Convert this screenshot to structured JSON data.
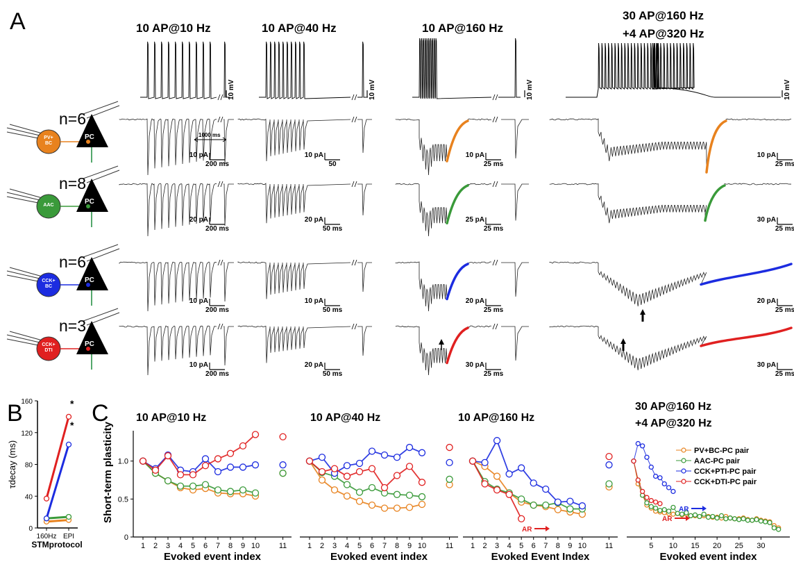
{
  "panel_labels": {
    "a": "A",
    "b": "B",
    "c": "C"
  },
  "columns": [
    {
      "title": "10 AP@10 Hz"
    },
    {
      "title": "10 AP@40 Hz"
    },
    {
      "title": "10 AP@160 Hz"
    },
    {
      "title_line1": "30 AP@160 Hz",
      "title_line2": "+4 AP@320 Hz"
    }
  ],
  "voltage_scale": "10 mV",
  "interval_label": "1000 ms",
  "rows": [
    {
      "n": "n=6",
      "cell": "PV+\nBC",
      "pc": "PC",
      "color": "#e8821e",
      "scales": [
        [
          "10 pA",
          "200 ms"
        ],
        [
          "10 pA",
          "50"
        ],
        [
          "10 pA",
          "25 ms"
        ],
        [
          "10 pA",
          "25 ms"
        ]
      ]
    },
    {
      "n": "n=8",
      "cell": "AAC",
      "pc": "PC",
      "color": "#3a9a3a",
      "scales": [
        [
          "20 pA",
          "200 ms"
        ],
        [
          "20 pA",
          "50 ms"
        ],
        [
          "25 pA",
          "25 ms"
        ],
        [
          "30 pA",
          "25 ms"
        ]
      ]
    },
    {
      "n": "n=6",
      "cell": "CCK+\nBC",
      "pc": "PC",
      "color": "#1c2ce0",
      "scales": [
        [
          "10 pA",
          "200 ms"
        ],
        [
          "10 pA",
          "50 ms"
        ],
        [
          "20 pA",
          "25 ms"
        ],
        [
          "20 pA",
          "25 ms"
        ]
      ]
    },
    {
      "n": "n=3",
      "cell": "CCK+\nDTI",
      "pc": "PC",
      "color": "#e02020",
      "scales": [
        [
          "10 pA",
          "200 ms"
        ],
        [
          "20 pA",
          "50 ms"
        ],
        [
          "30 pA",
          "25 ms"
        ],
        [
          "30 pA",
          "25 ms"
        ]
      ]
    }
  ],
  "panel_b": {
    "ylabel": "τdecay (ms)",
    "yticks": [
      0,
      40,
      80,
      120,
      160
    ],
    "xticks": [
      "160Hz",
      "EPI"
    ],
    "xlabel": "STMprotocol",
    "star": "*"
  },
  "panel_c": {
    "ylabel": "Short-term plasticity",
    "yticks": [
      0,
      0.5,
      1.0
    ],
    "xlabels": [
      "Evoked event index",
      "Evoked event index",
      "Evoked Event Index",
      "Evoked event index"
    ],
    "legend": [
      "PV+BC-PC pair",
      "AAC-PC pair",
      "CCK+PTI-PC pair",
      "CCK+DTI-PC pair"
    ],
    "ar_label": "AR"
  },
  "chart_data": [
    {
      "type": "line",
      "title": "",
      "xlabel": "STMprotocol",
      "ylabel": "τdecay (ms)",
      "categories": [
        "160Hz",
        "EPI"
      ],
      "ylim": [
        0,
        160
      ],
      "series": [
        {
          "color": "#e8821e",
          "values": [
            8,
            10
          ]
        },
        {
          "color": "#3a9a3a",
          "values": [
            12,
            14
          ]
        },
        {
          "color": "#1c2ce0",
          "values": [
            12,
            105
          ]
        },
        {
          "color": "#e02020",
          "values": [
            37,
            140
          ]
        }
      ]
    },
    {
      "type": "line",
      "title": "10 AP@10 Hz",
      "xlabel": "Evoked event index",
      "ylabel": "Short-term plasticity",
      "categories": [
        1,
        2,
        3,
        4,
        5,
        6,
        7,
        8,
        9,
        10,
        11
      ],
      "ylim": [
        0,
        1.4
      ],
      "series": [
        {
          "color": "#e8821e",
          "values": [
            1.0,
            0.84,
            0.74,
            0.65,
            0.62,
            0.64,
            0.58,
            0.57,
            0.57,
            0.54,
            0.84
          ]
        },
        {
          "color": "#3a9a3a",
          "values": [
            1.0,
            0.84,
            0.74,
            0.67,
            0.67,
            0.69,
            0.62,
            0.6,
            0.62,
            0.58,
            0.84
          ]
        },
        {
          "color": "#1c2ce0",
          "values": [
            1.0,
            0.9,
            1.08,
            0.88,
            0.86,
            1.03,
            0.86,
            0.92,
            0.92,
            0.95,
            0.95
          ]
        },
        {
          "color": "#e02020",
          "values": [
            1.0,
            0.88,
            1.07,
            0.82,
            0.82,
            0.94,
            1.03,
            1.1,
            1.2,
            1.35,
            1.32
          ]
        }
      ]
    },
    {
      "type": "line",
      "title": "10 AP@40 Hz",
      "xlabel": "Evoked event index",
      "ylabel": "Short-term plasticity",
      "categories": [
        1,
        2,
        3,
        4,
        5,
        6,
        7,
        8,
        9,
        10,
        11
      ],
      "ylim": [
        0,
        1.4
      ],
      "series": [
        {
          "color": "#e8821e",
          "values": [
            1.0,
            0.75,
            0.62,
            0.54,
            0.47,
            0.42,
            0.38,
            0.38,
            0.39,
            0.43,
            0.69
          ]
        },
        {
          "color": "#3a9a3a",
          "values": [
            1.0,
            0.85,
            0.8,
            0.69,
            0.59,
            0.65,
            0.58,
            0.56,
            0.55,
            0.53,
            0.76
          ]
        },
        {
          "color": "#1c2ce0",
          "values": [
            1.0,
            1.05,
            0.84,
            0.94,
            0.97,
            1.13,
            1.08,
            1.05,
            1.18,
            1.11,
            0.98
          ]
        },
        {
          "color": "#e02020",
          "values": [
            1.0,
            0.86,
            0.9,
            0.8,
            0.86,
            0.9,
            0.65,
            0.81,
            0.93,
            0.72,
            1.18
          ]
        }
      ]
    },
    {
      "type": "line",
      "title": "10 AP@160 Hz",
      "xlabel": "Evoked Event Index",
      "ylabel": "Short-term plasticity",
      "categories": [
        1,
        2,
        3,
        4,
        5,
        6,
        7,
        8,
        9,
        10,
        11
      ],
      "ylim": [
        0,
        1.4
      ],
      "series": [
        {
          "color": "#e8821e",
          "values": [
            1.0,
            0.93,
            0.8,
            0.58,
            0.46,
            0.42,
            0.4,
            0.36,
            0.33,
            0.3,
            0.66
          ]
        },
        {
          "color": "#3a9a3a",
          "values": [
            1.0,
            0.73,
            0.63,
            0.58,
            0.5,
            0.42,
            0.42,
            0.45,
            0.37,
            0.37,
            0.7
          ]
        },
        {
          "color": "#1c2ce0",
          "values": [
            1.0,
            0.98,
            1.27,
            0.83,
            0.91,
            0.71,
            0.63,
            0.46,
            0.47,
            0.41,
            0.95
          ]
        },
        {
          "color": "#e02020",
          "values": [
            1.0,
            0.7,
            0.62,
            0.56,
            0.24,
            null,
            null,
            null,
            null,
            null,
            1.06
          ]
        }
      ]
    },
    {
      "type": "line",
      "title": "30 AP@160 Hz +4 AP@320 Hz",
      "xlabel": "Evoked event index",
      "ylabel": "Short-term plasticity",
      "x": [
        1,
        2,
        3,
        4,
        5,
        6,
        7,
        8,
        9,
        10,
        11,
        12,
        13,
        14,
        15,
        16,
        17,
        18,
        19,
        20,
        21,
        22,
        23,
        24,
        25,
        26,
        27,
        28,
        29,
        30,
        31,
        32,
        33,
        34
      ],
      "xticks": [
        5,
        10,
        15,
        20,
        25,
        30
      ],
      "ylim": [
        0,
        1.4
      ],
      "series": [
        {
          "name": "PV+BC-PC pair",
          "color": "#e8821e",
          "values": [
            1.0,
            0.7,
            0.55,
            0.42,
            0.38,
            0.34,
            0.33,
            0.32,
            0.31,
            0.3,
            0.31,
            0.29,
            0.3,
            0.28,
            0.28,
            0.27,
            0.28,
            0.27,
            0.26,
            0.26,
            0.25,
            0.27,
            0.25,
            0.24,
            0.24,
            0.25,
            0.23,
            0.22,
            0.24,
            0.22,
            0.21,
            0.2,
            0.15,
            0.12
          ]
        },
        {
          "name": "AAC-PC pair",
          "color": "#3a9a3a",
          "values": [
            1.0,
            0.75,
            0.55,
            0.45,
            0.4,
            0.38,
            0.35,
            0.36,
            0.34,
            0.39,
            0.31,
            0.3,
            0.32,
            0.28,
            0.29,
            0.27,
            0.3,
            0.26,
            0.27,
            0.25,
            0.28,
            0.24,
            0.25,
            0.24,
            0.23,
            0.24,
            0.22,
            0.22,
            0.23,
            0.21,
            0.2,
            0.19,
            0.12,
            0.1
          ]
        },
        {
          "name": "CCK+PTI-PC pair",
          "color": "#1c2ce0",
          "values": [
            1.0,
            1.23,
            1.2,
            1.05,
            0.92,
            0.8,
            0.78,
            0.7,
            0.65,
            0.6,
            null,
            null,
            null,
            null,
            null,
            null,
            null,
            null,
            null,
            null,
            null,
            null,
            null,
            null,
            null,
            null,
            null,
            null,
            null,
            null,
            null,
            null,
            null,
            null
          ]
        },
        {
          "name": "CCK+DTI-PC pair",
          "color": "#e02020",
          "values": [
            1.0,
            0.75,
            0.6,
            0.52,
            0.48,
            0.46,
            0.44,
            null,
            null,
            null,
            null,
            null,
            null,
            null,
            null,
            null,
            null,
            null,
            null,
            null,
            null,
            null,
            null,
            null,
            null,
            null,
            null,
            null,
            null,
            null,
            null,
            null,
            null,
            null
          ]
        }
      ]
    }
  ]
}
